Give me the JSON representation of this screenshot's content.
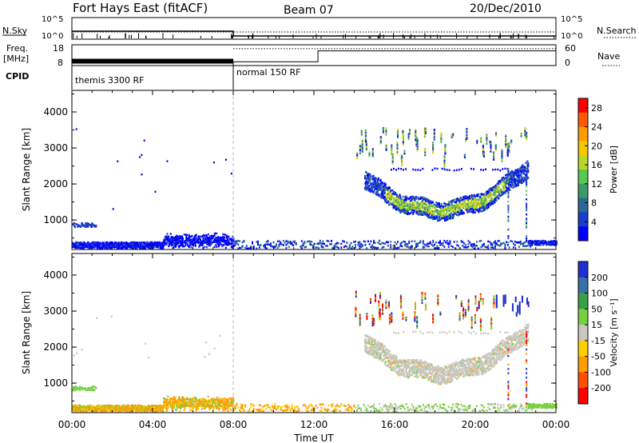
{
  "header": {
    "station": "Fort Hays East (fitACF)",
    "beam": "Beam 07",
    "date": "20/Dec/2010"
  },
  "top_panels": {
    "nsky_label": "N.Sky",
    "nsky_ticks": [
      "10^5",
      "10^0"
    ],
    "nsearch_label": "N.Search",
    "nsearch_ticks": [
      "10^5",
      "10^0"
    ],
    "freq_label": "Freq.",
    "freq_unit": "[MHz]",
    "freq_ticks": [
      "18",
      "8"
    ],
    "nave_label": "Nave",
    "nave_ticks": [
      "60",
      "0"
    ],
    "cpid_label": "CPID",
    "cpid_modes": [
      {
        "label": "themis 3300 RF",
        "start_hour": 0,
        "end_hour": 8
      },
      {
        "label": "normal 150 RF",
        "start_hour": 8,
        "end_hour": 24
      }
    ],
    "freq_trace": [
      {
        "start": 0,
        "end": 8,
        "value": 10.5
      },
      {
        "start": 8,
        "end": 24,
        "value": 17.5
      }
    ],
    "nave_trace": [
      {
        "start": 0,
        "end": 8,
        "value": 0
      },
      {
        "start": 8,
        "end": 12.2,
        "value": 12
      },
      {
        "start": 12.2,
        "end": 24,
        "value": 46
      }
    ]
  },
  "chart_data": [
    {
      "type": "heatmap",
      "title": "",
      "xlabel": "",
      "ylabel": "Slant Range [km]",
      "xlim": [
        0,
        24
      ],
      "ylim": [
        180,
        4600
      ],
      "x_ticks": [
        "00:00",
        "04:00",
        "08:00",
        "12:00",
        "16:00",
        "20:00",
        "00:00"
      ],
      "y_ticks": [
        1000,
        2000,
        3000,
        4000
      ],
      "colorbar": {
        "label": "Power [dB]",
        "ticks": [
          "4",
          "8",
          "12",
          "16",
          "20",
          "24",
          "28"
        ],
        "range": [
          0,
          30
        ],
        "colors": [
          "#0000ff",
          "#1a3cc8",
          "#2a6898",
          "#3c9a6a",
          "#58c850",
          "#b8d828",
          "#f2c800",
          "#ff9a00",
          "#ff5a00",
          "#ff0000"
        ]
      },
      "regions": [
        {
          "name": "ground scatter band",
          "x": [
            0,
            8
          ],
          "range": [
            230,
            420
          ],
          "value_level": 1
        },
        {
          "name": "morning patch",
          "x": [
            0,
            1.2
          ],
          "range": [
            800,
            950
          ],
          "value_level": 2
        },
        {
          "name": "evening echoes",
          "x": [
            14.5,
            22.6
          ],
          "range": [
            1200,
            2500
          ],
          "value_level": 6
        }
      ]
    },
    {
      "type": "heatmap",
      "title": "",
      "xlabel": "Time UT",
      "ylabel": "Slant Range [km]",
      "xlim": [
        0,
        24
      ],
      "ylim": [
        180,
        4600
      ],
      "x_ticks": [
        "00:00",
        "04:00",
        "08:00",
        "12:00",
        "16:00",
        "20:00",
        "00:00"
      ],
      "y_ticks": [
        1000,
        2000,
        3000,
        4000
      ],
      "colorbar": {
        "label": "Velocity [m s⁻¹]",
        "ticks": [
          "200",
          "100",
          "50",
          "15",
          "-15",
          "-50",
          "-100",
          "-200"
        ],
        "colors": [
          "#2030d0",
          "#3a70a8",
          "#3aa048",
          "#78d040",
          "#c8c8c0",
          "#ffd000",
          "#ff9c00",
          "#ff5000",
          "#ff0000"
        ]
      },
      "regions": [
        {
          "name": "ground scatter band",
          "x": [
            0,
            8
          ],
          "range": [
            230,
            420
          ],
          "value_level": 6
        },
        {
          "name": "evening echoes",
          "x": [
            14.5,
            22.6
          ],
          "range": [
            1200,
            2500
          ],
          "value_level": 4
        }
      ]
    }
  ]
}
